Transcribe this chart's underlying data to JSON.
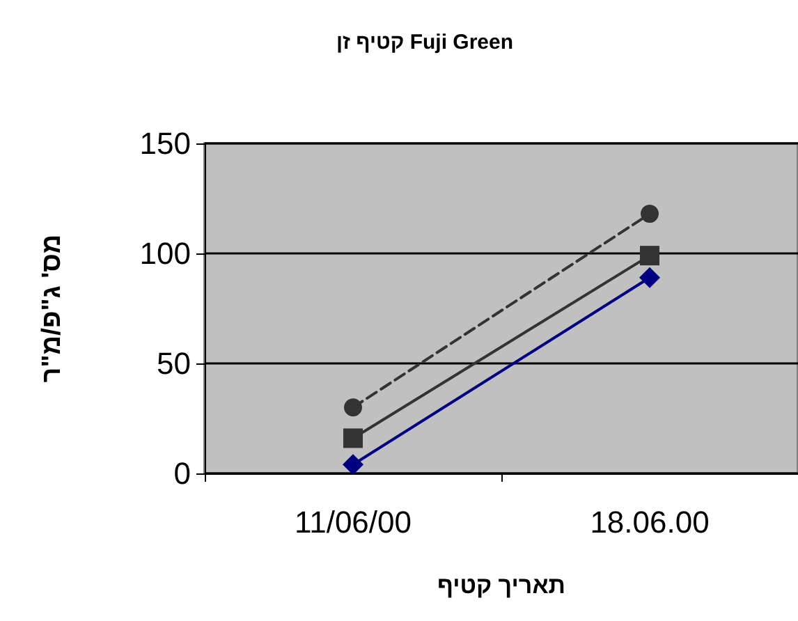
{
  "chart_data": {
    "type": "line",
    "title": "קטיף זן Fuji Green",
    "xlabel": "תאריך קטיף",
    "ylabel": "מס' ג\"פ/מ\"ר",
    "categories": [
      "11/06/00",
      "18.06.00"
    ],
    "series": [
      {
        "color": "#333333",
        "values": [
          30,
          118
        ],
        "marker": "circle",
        "line_style": "dashed"
      },
      {
        "color": "#333333",
        "values": [
          16,
          99
        ],
        "marker": "square",
        "line_style": "solid"
      },
      {
        "color": "#000080",
        "values": [
          4,
          89
        ],
        "marker": "diamond",
        "line_style": "solid"
      }
    ],
    "ylim": [
      0,
      150
    ],
    "yticks": [
      0,
      50,
      100,
      150
    ],
    "grid": "y"
  }
}
